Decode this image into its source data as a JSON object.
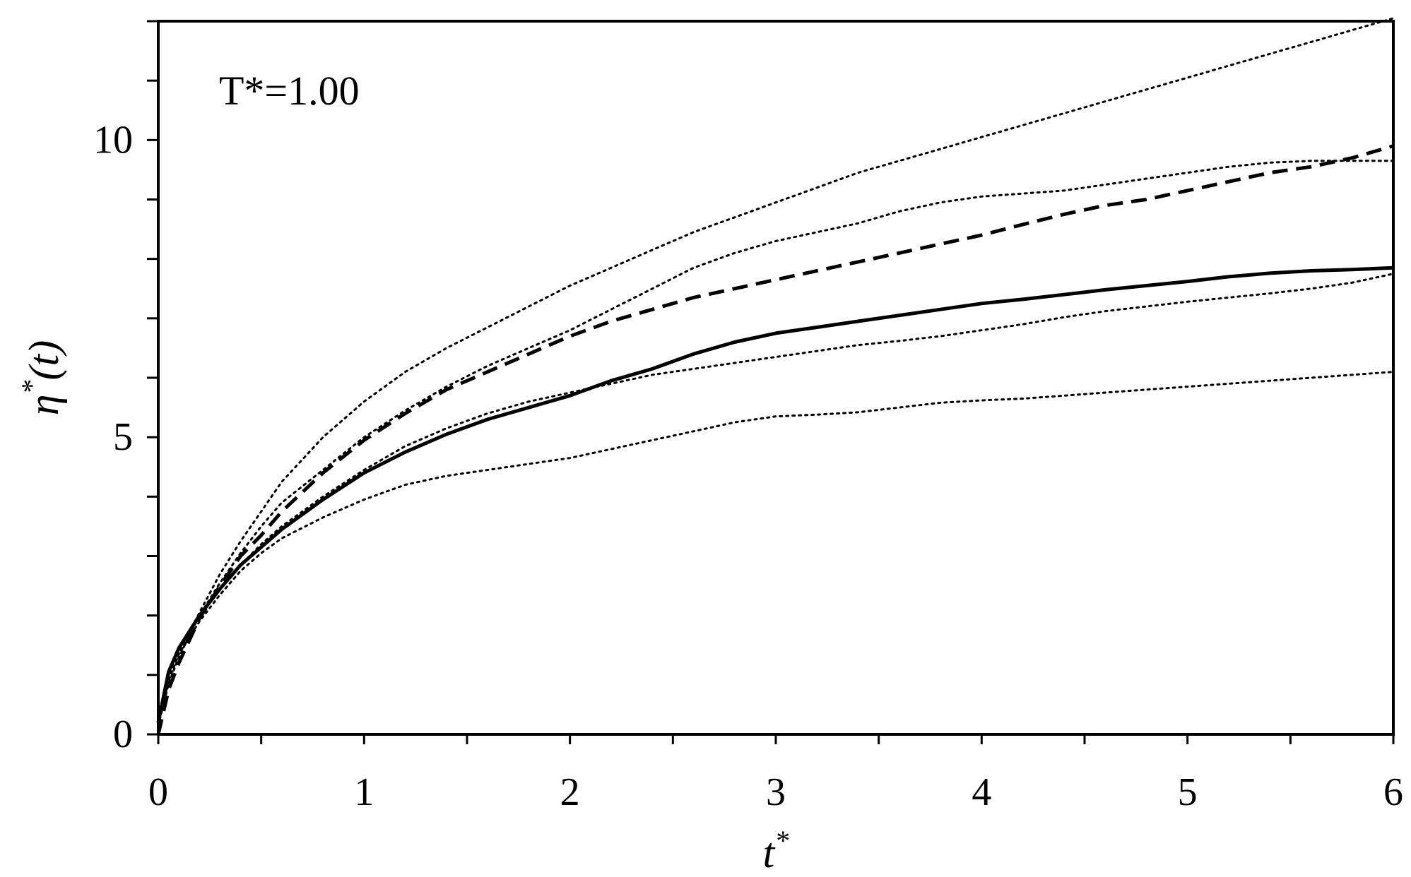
{
  "chart_data": {
    "type": "line",
    "title": "",
    "annotation": "T*=1.00",
    "xlabel": "t",
    "xlabel_sup": "*",
    "ylabel_eta": "η",
    "ylabel_sup": "*",
    "ylabel_rest": "(t)",
    "xlim": [
      0,
      6
    ],
    "ylim": [
      0,
      12
    ],
    "xticks": [
      0,
      1,
      2,
      3,
      4,
      5,
      6
    ],
    "xtick_labels": [
      "0",
      "1",
      "2",
      "3",
      "4",
      "5",
      "6"
    ],
    "x_minor_step": 0.5,
    "yticks": [
      0,
      5,
      10
    ],
    "ytick_labels": [
      "0",
      "5",
      "10"
    ],
    "y_minor_step": 1,
    "grid": false,
    "legend": "none",
    "series": [
      {
        "style": "solid",
        "color": "#000000",
        "x": [
          0,
          0.05,
          0.1,
          0.2,
          0.3,
          0.4,
          0.5,
          0.6,
          0.8,
          1.0,
          1.2,
          1.4,
          1.6,
          1.8,
          2.0,
          2.2,
          2.4,
          2.6,
          2.8,
          3.0,
          3.2,
          3.4,
          3.6,
          3.8,
          4.0,
          4.2,
          4.4,
          4.6,
          4.8,
          5.0,
          5.2,
          5.4,
          5.6,
          5.8,
          6.0
        ],
        "y": [
          0.2,
          1.05,
          1.45,
          2.0,
          2.45,
          2.85,
          3.15,
          3.45,
          3.95,
          4.4,
          4.75,
          5.05,
          5.3,
          5.5,
          5.7,
          5.95,
          6.15,
          6.4,
          6.6,
          6.75,
          6.85,
          6.95,
          7.05,
          7.15,
          7.25,
          7.32,
          7.4,
          7.48,
          7.55,
          7.62,
          7.7,
          7.76,
          7.8,
          7.82,
          7.85
        ]
      },
      {
        "style": "dashed",
        "color": "#000000",
        "x": [
          0,
          0.05,
          0.1,
          0.2,
          0.3,
          0.4,
          0.5,
          0.6,
          0.8,
          1.0,
          1.2,
          1.4,
          1.6,
          1.8,
          2.0,
          2.2,
          2.4,
          2.6,
          2.8,
          3.0,
          3.2,
          3.4,
          3.6,
          3.8,
          4.0,
          4.2,
          4.4,
          4.6,
          4.8,
          5.0,
          5.2,
          5.4,
          5.6,
          5.8,
          6.0
        ],
        "y": [
          0.0,
          0.75,
          1.2,
          1.95,
          2.5,
          3.0,
          3.35,
          3.75,
          4.4,
          4.95,
          5.4,
          5.8,
          6.1,
          6.4,
          6.7,
          6.95,
          7.15,
          7.35,
          7.5,
          7.65,
          7.8,
          7.95,
          8.1,
          8.25,
          8.4,
          8.58,
          8.75,
          8.9,
          9.0,
          9.15,
          9.3,
          9.45,
          9.55,
          9.7,
          9.9
        ]
      },
      {
        "style": "dotted",
        "color": "#000000",
        "x": [
          0,
          0.05,
          0.1,
          0.2,
          0.3,
          0.4,
          0.5,
          0.6,
          0.8,
          1.0,
          1.2,
          1.4,
          1.6,
          1.8,
          2.0,
          2.2,
          2.4,
          2.6,
          2.8,
          3.0,
          3.2,
          3.4,
          3.6,
          3.8,
          4.0,
          4.2,
          4.4,
          4.6,
          4.8,
          5.0,
          5.2,
          5.4,
          5.6,
          5.8,
          6.0
        ],
        "y": [
          0.2,
          0.9,
          1.35,
          2.05,
          2.7,
          3.25,
          3.75,
          4.25,
          5.0,
          5.6,
          6.1,
          6.5,
          6.85,
          7.2,
          7.55,
          7.85,
          8.15,
          8.45,
          8.7,
          8.95,
          9.2,
          9.45,
          9.65,
          9.85,
          10.05,
          10.25,
          10.45,
          10.65,
          10.85,
          11.05,
          11.25,
          11.45,
          11.65,
          11.85,
          12.05
        ]
      },
      {
        "style": "dotted",
        "color": "#000000",
        "x": [
          0,
          0.05,
          0.1,
          0.2,
          0.3,
          0.4,
          0.5,
          0.6,
          0.8,
          1.0,
          1.2,
          1.4,
          1.6,
          1.8,
          2.0,
          2.2,
          2.4,
          2.6,
          2.8,
          3.0,
          3.2,
          3.4,
          3.6,
          3.8,
          4.0,
          4.2,
          4.4,
          4.6,
          4.8,
          5.0,
          5.2,
          5.4,
          5.6,
          5.8,
          6.0
        ],
        "y": [
          0.15,
          0.85,
          1.3,
          2.0,
          2.55,
          3.05,
          3.5,
          3.9,
          4.45,
          5.0,
          5.45,
          5.85,
          6.2,
          6.5,
          6.8,
          7.15,
          7.5,
          7.85,
          8.1,
          8.3,
          8.45,
          8.6,
          8.8,
          8.95,
          9.05,
          9.1,
          9.15,
          9.25,
          9.35,
          9.45,
          9.55,
          9.62,
          9.65,
          9.65,
          9.65
        ]
      },
      {
        "style": "dotted",
        "color": "#000000",
        "x": [
          0,
          0.05,
          0.1,
          0.2,
          0.3,
          0.4,
          0.5,
          0.6,
          0.8,
          1.0,
          1.2,
          1.4,
          1.6,
          1.8,
          2.0,
          2.2,
          2.4,
          2.6,
          2.8,
          3.0,
          3.2,
          3.4,
          3.6,
          3.8,
          4.0,
          4.2,
          4.4,
          4.6,
          4.8,
          5.0,
          5.2,
          5.4,
          5.6,
          5.8,
          6.0
        ],
        "y": [
          0.2,
          1.0,
          1.4,
          2.0,
          2.45,
          2.85,
          3.2,
          3.5,
          4.0,
          4.45,
          4.85,
          5.15,
          5.4,
          5.6,
          5.75,
          5.9,
          6.05,
          6.15,
          6.25,
          6.35,
          6.45,
          6.55,
          6.62,
          6.7,
          6.8,
          6.9,
          7.02,
          7.12,
          7.2,
          7.28,
          7.35,
          7.42,
          7.5,
          7.6,
          7.75
        ]
      },
      {
        "style": "dotted",
        "color": "#000000",
        "x": [
          0,
          0.05,
          0.1,
          0.2,
          0.3,
          0.4,
          0.5,
          0.6,
          0.8,
          1.0,
          1.2,
          1.4,
          1.6,
          1.8,
          2.0,
          2.2,
          2.4,
          2.6,
          2.8,
          3.0,
          3.2,
          3.4,
          3.6,
          3.8,
          4.0,
          4.2,
          4.4,
          4.6,
          4.8,
          5.0,
          5.2,
          5.4,
          5.6,
          5.8,
          6.0
        ],
        "y": [
          0.2,
          0.95,
          1.35,
          1.9,
          2.35,
          2.75,
          3.05,
          3.3,
          3.65,
          3.95,
          4.2,
          4.35,
          4.45,
          4.55,
          4.65,
          4.8,
          4.95,
          5.1,
          5.25,
          5.35,
          5.38,
          5.42,
          5.5,
          5.58,
          5.62,
          5.65,
          5.7,
          5.75,
          5.8,
          5.85,
          5.9,
          5.95,
          6.0,
          6.05,
          6.1
        ]
      }
    ]
  }
}
